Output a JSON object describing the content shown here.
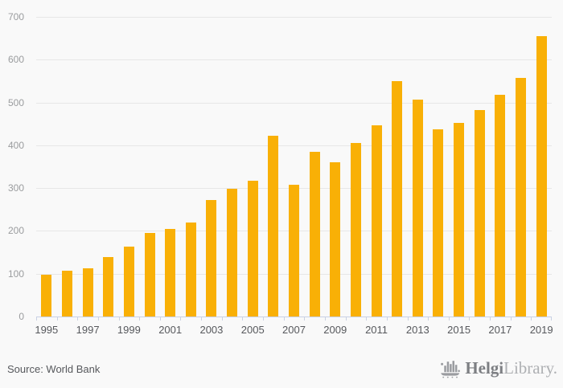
{
  "chart_data": {
    "type": "bar",
    "x": [
      1995,
      1996,
      1997,
      1998,
      1999,
      2000,
      2001,
      2002,
      2003,
      2004,
      2005,
      2006,
      2007,
      2008,
      2009,
      2010,
      2011,
      2012,
      2013,
      2014,
      2015,
      2016,
      2017,
      2018,
      2019
    ],
    "values": [
      97,
      107,
      113,
      139,
      163,
      195,
      204,
      220,
      272,
      298,
      318,
      423,
      308,
      384,
      360,
      405,
      447,
      549,
      506,
      437,
      453,
      482,
      518,
      558,
      655
    ],
    "title": "",
    "xlabel": "",
    "ylabel": "",
    "ylim": [
      0,
      700
    ],
    "y_ticks": [
      0,
      100,
      200,
      300,
      400,
      500,
      600,
      700
    ],
    "x_tick_labels": [
      "1995",
      "1997",
      "1999",
      "2001",
      "2003",
      "2005",
      "2007",
      "2009",
      "2011",
      "2013",
      "2015",
      "2017",
      "2019"
    ],
    "grid": true,
    "legend": false,
    "bar_color": "#F9B006"
  },
  "colors": {
    "background": "#F9F9F9",
    "gridline": "#E7E7E7",
    "axis": "#C9D1E4",
    "y_label": "#9A9C9E",
    "x_label": "#56585C",
    "bar": "#F9B006"
  },
  "footer": {
    "source": "Source: World Bank"
  },
  "logo": {
    "brand_bold": "Helgi",
    "brand_light": "Library."
  }
}
